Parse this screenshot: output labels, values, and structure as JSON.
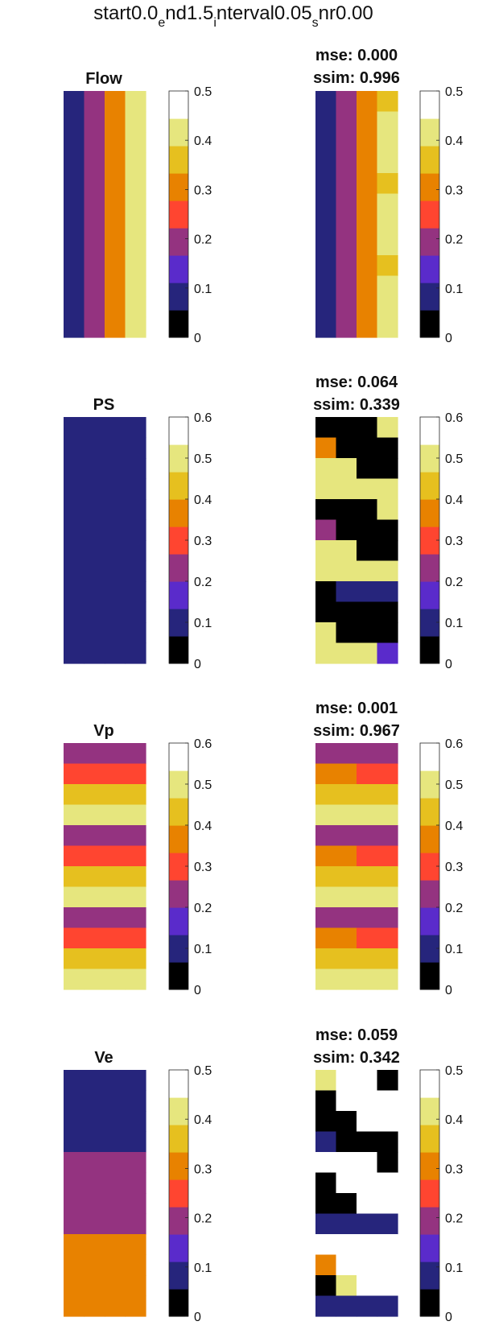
{
  "figure": {
    "title_parts": [
      "start0.0",
      "e",
      "nd1.5",
      "i",
      "nterval0.05",
      "s",
      "nr0.00"
    ]
  },
  "colors": {
    "palette": [
      "#000000",
      "#26257C",
      "#5A2BCB",
      "#943380",
      "#FF4530",
      "#E88200",
      "#E6C01F",
      "#E6E67E",
      "#FFFFFF"
    ],
    "blank": "#FFFFFF"
  },
  "chart_data": [
    {
      "type": "heatmap",
      "name": "Flow",
      "title": "Flow",
      "panel": "ground-truth",
      "clim": [
        0,
        0.5
      ],
      "ticks": [
        "0",
        "0.1",
        "0.2",
        "0.3",
        "0.4",
        "0.5"
      ],
      "nlevels": 9,
      "grid": [
        [
          1,
          3,
          5,
          7
        ],
        [
          1,
          3,
          5,
          7
        ],
        [
          1,
          3,
          5,
          7
        ],
        [
          1,
          3,
          5,
          7
        ],
        [
          1,
          3,
          5,
          7
        ],
        [
          1,
          3,
          5,
          7
        ],
        [
          1,
          3,
          5,
          7
        ],
        [
          1,
          3,
          5,
          7
        ],
        [
          1,
          3,
          5,
          7
        ],
        [
          1,
          3,
          5,
          7
        ],
        [
          1,
          3,
          5,
          7
        ],
        [
          1,
          3,
          5,
          7
        ]
      ]
    },
    {
      "type": "heatmap",
      "name": "Flow",
      "mse": "mse: 0.000",
      "ssim": "ssim: 0.996",
      "panel": "estimate",
      "clim": [
        0,
        0.5
      ],
      "ticks": [
        "0",
        "0.1",
        "0.2",
        "0.3",
        "0.4",
        "0.5"
      ],
      "nlevels": 9,
      "grid": [
        [
          1,
          3,
          5,
          6
        ],
        [
          1,
          3,
          5,
          7
        ],
        [
          1,
          3,
          5,
          7
        ],
        [
          1,
          3,
          5,
          7
        ],
        [
          1,
          3,
          5,
          6
        ],
        [
          1,
          3,
          5,
          7
        ],
        [
          1,
          3,
          5,
          7
        ],
        [
          1,
          3,
          5,
          7
        ],
        [
          1,
          3,
          5,
          6
        ],
        [
          1,
          3,
          5,
          7
        ],
        [
          1,
          3,
          5,
          7
        ],
        [
          1,
          3,
          5,
          7
        ]
      ]
    },
    {
      "type": "heatmap",
      "name": "PS",
      "title": "PS",
      "panel": "ground-truth",
      "clim": [
        0,
        0.6
      ],
      "ticks": [
        "0",
        "0.1",
        "0.2",
        "0.3",
        "0.4",
        "0.5",
        "0.6"
      ],
      "nlevels": 9,
      "grid": [
        [
          1,
          1,
          1,
          1
        ],
        [
          1,
          1,
          1,
          1
        ],
        [
          1,
          1,
          1,
          1
        ],
        [
          1,
          1,
          1,
          1
        ],
        [
          1,
          1,
          1,
          1
        ],
        [
          1,
          1,
          1,
          1
        ],
        [
          1,
          1,
          1,
          1
        ],
        [
          1,
          1,
          1,
          1
        ],
        [
          1,
          1,
          1,
          1
        ],
        [
          1,
          1,
          1,
          1
        ],
        [
          1,
          1,
          1,
          1
        ],
        [
          1,
          1,
          1,
          1
        ]
      ]
    },
    {
      "type": "heatmap",
      "name": "PS",
      "mse": "mse: 0.064",
      "ssim": "ssim: 0.339",
      "panel": "estimate",
      "clim": [
        0,
        0.6
      ],
      "ticks": [
        "0",
        "0.1",
        "0.2",
        "0.3",
        "0.4",
        "0.5",
        "0.6"
      ],
      "nlevels": 9,
      "grid": [
        [
          0,
          0,
          0,
          7
        ],
        [
          5,
          0,
          0,
          0
        ],
        [
          7,
          7,
          0,
          0
        ],
        [
          7,
          7,
          7,
          7
        ],
        [
          0,
          0,
          0,
          7
        ],
        [
          3,
          0,
          0,
          0
        ],
        [
          7,
          7,
          0,
          0
        ],
        [
          7,
          7,
          7,
          7
        ],
        [
          0,
          1,
          1,
          1
        ],
        [
          0,
          0,
          0,
          0
        ],
        [
          7,
          0,
          0,
          0
        ],
        [
          7,
          7,
          7,
          2
        ]
      ]
    },
    {
      "type": "heatmap",
      "name": "Vp",
      "title": "Vp",
      "panel": "ground-truth",
      "clim": [
        0,
        0.6
      ],
      "ticks": [
        "0",
        "0.1",
        "0.2",
        "0.3",
        "0.4",
        "0.5",
        "0.6"
      ],
      "nlevels": 9,
      "grid": [
        [
          3,
          3,
          3,
          3
        ],
        [
          4,
          4,
          4,
          4
        ],
        [
          6,
          6,
          6,
          6
        ],
        [
          7,
          7,
          7,
          7
        ],
        [
          3,
          3,
          3,
          3
        ],
        [
          4,
          4,
          4,
          4
        ],
        [
          6,
          6,
          6,
          6
        ],
        [
          7,
          7,
          7,
          7
        ],
        [
          3,
          3,
          3,
          3
        ],
        [
          4,
          4,
          4,
          4
        ],
        [
          6,
          6,
          6,
          6
        ],
        [
          7,
          7,
          7,
          7
        ]
      ]
    },
    {
      "type": "heatmap",
      "name": "Vp",
      "mse": "mse: 0.001",
      "ssim": "ssim: 0.967",
      "panel": "estimate",
      "clim": [
        0,
        0.6
      ],
      "ticks": [
        "0",
        "0.1",
        "0.2",
        "0.3",
        "0.4",
        "0.5",
        "0.6"
      ],
      "nlevels": 9,
      "grid": [
        [
          3,
          3,
          3,
          3
        ],
        [
          5,
          5,
          4,
          4
        ],
        [
          6,
          6,
          6,
          6
        ],
        [
          7,
          7,
          7,
          7
        ],
        [
          3,
          3,
          3,
          3
        ],
        [
          5,
          5,
          4,
          4
        ],
        [
          6,
          6,
          6,
          6
        ],
        [
          7,
          7,
          7,
          7
        ],
        [
          3,
          3,
          3,
          3
        ],
        [
          5,
          5,
          4,
          4
        ],
        [
          6,
          6,
          6,
          6
        ],
        [
          7,
          7,
          7,
          7
        ]
      ]
    },
    {
      "type": "heatmap",
      "name": "Ve",
      "title": "Ve",
      "panel": "ground-truth",
      "clim": [
        0,
        0.5
      ],
      "ticks": [
        "0",
        "0.1",
        "0.2",
        "0.3",
        "0.4",
        "0.5"
      ],
      "nlevels": 9,
      "grid": [
        [
          1,
          1,
          1,
          1
        ],
        [
          1,
          1,
          1,
          1
        ],
        [
          1,
          1,
          1,
          1
        ],
        [
          1,
          1,
          1,
          1
        ],
        [
          3,
          3,
          3,
          3
        ],
        [
          3,
          3,
          3,
          3
        ],
        [
          3,
          3,
          3,
          3
        ],
        [
          3,
          3,
          3,
          3
        ],
        [
          5,
          5,
          5,
          5
        ],
        [
          5,
          5,
          5,
          5
        ],
        [
          5,
          5,
          5,
          5
        ],
        [
          5,
          5,
          5,
          5
        ]
      ]
    },
    {
      "type": "heatmap",
      "name": "Ve",
      "mse": "mse: 0.059",
      "ssim": "ssim: 0.342",
      "panel": "estimate",
      "clim": [
        0,
        0.5
      ],
      "ticks": [
        "0",
        "0.1",
        "0.2",
        "0.3",
        "0.4",
        "0.5"
      ],
      "nlevels": 9,
      "grid": [
        [
          7,
          -1,
          -1,
          0
        ],
        [
          0,
          -1,
          -1,
          -1
        ],
        [
          0,
          0,
          -1,
          -1
        ],
        [
          1,
          0,
          0,
          0
        ],
        [
          -1,
          -1,
          -1,
          0
        ],
        [
          0,
          -1,
          -1,
          -1
        ],
        [
          0,
          0,
          -1,
          -1
        ],
        [
          1,
          1,
          1,
          1
        ],
        [
          -1,
          -1,
          -1,
          -1
        ],
        [
          5,
          -1,
          -1,
          -1
        ],
        [
          0,
          7,
          -1,
          -1
        ],
        [
          1,
          1,
          1,
          1
        ]
      ]
    }
  ]
}
